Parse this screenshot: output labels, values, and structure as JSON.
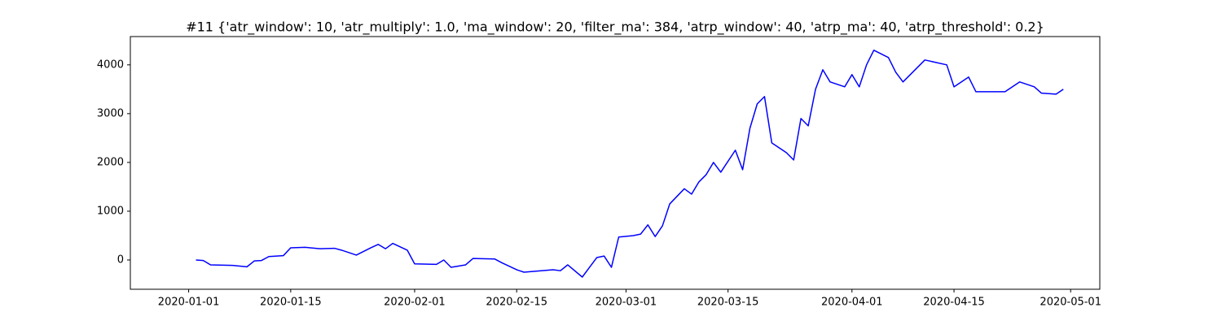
{
  "chart_data": {
    "type": "line",
    "title": "#11 {'atr_window': 10, 'atr_multiply': 1.0, 'ma_window': 20, 'filter_ma': 384, 'atrp_window': 40, 'atrp_ma': 40, 'atrp_threshold': 0.2}",
    "x": [
      "2020-01-02",
      "2020-01-03",
      "2020-01-04",
      "2020-01-07",
      "2020-01-09",
      "2020-01-10",
      "2020-01-11",
      "2020-01-12",
      "2020-01-14",
      "2020-01-15",
      "2020-01-17",
      "2020-01-19",
      "2020-01-21",
      "2020-01-22",
      "2020-01-24",
      "2020-01-26",
      "2020-01-27",
      "2020-01-28",
      "2020-01-29",
      "2020-01-31",
      "2020-02-01",
      "2020-02-04",
      "2020-02-05",
      "2020-02-06",
      "2020-02-08",
      "2020-02-09",
      "2020-02-12",
      "2020-02-13",
      "2020-02-15",
      "2020-02-16",
      "2020-02-20",
      "2020-02-21",
      "2020-02-22",
      "2020-02-24",
      "2020-02-25",
      "2020-02-26",
      "2020-02-27",
      "2020-02-28",
      "2020-02-29",
      "2020-03-02",
      "2020-03-03",
      "2020-03-04",
      "2020-03-05",
      "2020-03-06",
      "2020-03-07",
      "2020-03-09",
      "2020-03-10",
      "2020-03-11",
      "2020-03-12",
      "2020-03-13",
      "2020-03-14",
      "2020-03-16",
      "2020-03-17",
      "2020-03-18",
      "2020-03-19",
      "2020-03-20",
      "2020-03-21",
      "2020-03-23",
      "2020-03-24",
      "2020-03-25",
      "2020-03-26",
      "2020-03-27",
      "2020-03-28",
      "2020-03-29",
      "2020-03-31",
      "2020-04-01",
      "2020-04-02",
      "2020-04-03",
      "2020-04-04",
      "2020-04-06",
      "2020-04-07",
      "2020-04-08",
      "2020-04-09",
      "2020-04-11",
      "2020-04-14",
      "2020-04-15",
      "2020-04-17",
      "2020-04-18",
      "2020-04-22",
      "2020-04-24",
      "2020-04-26",
      "2020-04-27",
      "2020-04-29",
      "2020-04-30"
    ],
    "series": [
      {
        "color": "#0000ff",
        "values": [
          0,
          -10,
          -100,
          -110,
          -140,
          -20,
          -10,
          70,
          90,
          250,
          260,
          230,
          240,
          200,
          100,
          250,
          320,
          230,
          340,
          200,
          -80,
          -90,
          0,
          -150,
          -100,
          30,
          20,
          -60,
          -200,
          -250,
          -200,
          -220,
          -100,
          -350,
          -150,
          50,
          80,
          -150,
          470,
          500,
          530,
          720,
          480,
          700,
          1150,
          1460,
          1350,
          1600,
          1750,
          2000,
          1800,
          2250,
          1850,
          2700,
          3200,
          3350,
          2400,
          2200,
          2050,
          2900,
          2750,
          3500,
          3900,
          3650,
          3550,
          3800,
          3550,
          4000,
          4300,
          4150,
          3850,
          3650,
          3800,
          4100,
          4000,
          3550,
          3750,
          3450,
          3450,
          3650,
          3550,
          3420,
          3400,
          3500
        ]
      }
    ],
    "xlim": [
      "2019-12-24",
      "2020-05-05"
    ],
    "xticks": [
      "2020-01-01",
      "2020-01-15",
      "2020-02-01",
      "2020-02-15",
      "2020-03-01",
      "2020-03-15",
      "2020-04-01",
      "2020-04-15",
      "2020-05-01"
    ],
    "ylim": [
      -600,
      4580
    ],
    "yticks": [
      0,
      1000,
      2000,
      3000,
      4000
    ]
  }
}
